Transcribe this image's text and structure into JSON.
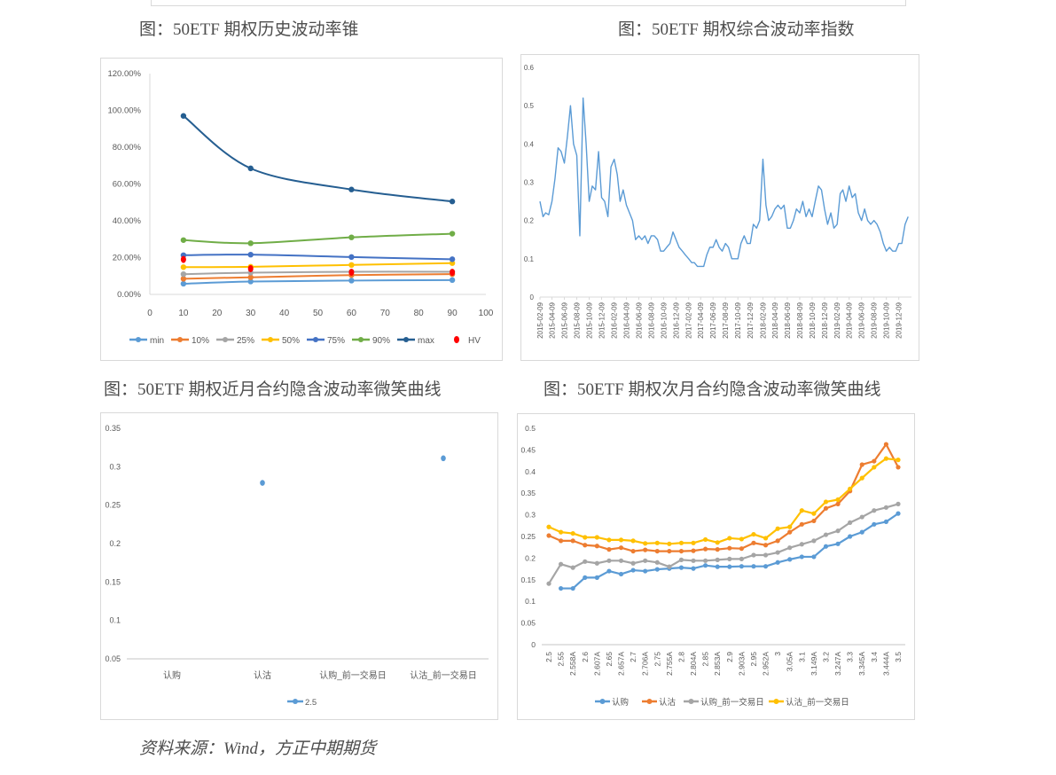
{
  "titles": {
    "fig1": "图：50ETF 期权历史波动率锥",
    "fig2": "图：50ETF 期权综合波动率指数",
    "fig3": "图：50ETF 期权近月合约隐含波动率微笑曲线",
    "fig4": "图：50ETF 期权次月合约隐含波动率微笑曲线"
  },
  "source": "资料来源：Wind，方正中期期货",
  "chart_data": [
    {
      "type": "line",
      "x": [
        10,
        30,
        60,
        90
      ],
      "xlim": [
        0,
        100
      ],
      "x_ticks": [
        "0",
        "10",
        "20",
        "30",
        "40",
        "50",
        "60",
        "70",
        "80",
        "90",
        "100"
      ],
      "ylim": [
        0,
        120
      ],
      "y_ticks": [
        "0.00%",
        "20.00%",
        "40.00%",
        "60.00%",
        "80.00%",
        "100.00%",
        "120.00%"
      ],
      "legend": "bottom",
      "smooth": true,
      "series": [
        {
          "name": "min",
          "color": "#5b9bd5",
          "values": [
            5.8,
            7.0,
            7.5,
            7.8
          ]
        },
        {
          "name": "10%",
          "color": "#ed7d31",
          "values": [
            8.5,
            9.3,
            10.5,
            11.0
          ]
        },
        {
          "name": "25%",
          "color": "#a5a5a5",
          "values": [
            11.0,
            11.8,
            12.3,
            12.3
          ]
        },
        {
          "name": "50%",
          "color": "#ffc000",
          "values": [
            14.8,
            15.0,
            16.0,
            17.0
          ]
        },
        {
          "name": "75%",
          "color": "#4472c4",
          "values": [
            21.3,
            21.6,
            20.3,
            19.1
          ]
        },
        {
          "name": "90%",
          "color": "#70ad47",
          "values": [
            29.5,
            27.8,
            31.0,
            33.0
          ]
        },
        {
          "name": "max",
          "color": "#255e91",
          "values": [
            97.0,
            68.5,
            57.0,
            50.5
          ]
        },
        {
          "name": "HV",
          "color": "#ff0000",
          "markers_only": true,
          "values": [
            19.0,
            14.0,
            12.0,
            12.0
          ]
        }
      ]
    },
    {
      "type": "line",
      "ylim": [
        0,
        0.6
      ],
      "y_ticks": [
        "0",
        "0.1",
        "0.2",
        "0.3",
        "0.4",
        "0.5",
        "0.6"
      ],
      "x_ticks": [
        "2015-02-09",
        "2015-04-09",
        "2015-06-09",
        "2015-08-09",
        "2015-10-09",
        "2015-12-09",
        "2016-02-09",
        "2016-04-09",
        "2016-06-09",
        "2016-08-09",
        "2016-10-09",
        "2016-12-09",
        "2017-02-09",
        "2017-04-09",
        "2017-06-09",
        "2017-08-09",
        "2017-10-09",
        "2017-12-09",
        "2018-02-09",
        "2018-04-09",
        "2018-06-09",
        "2018-08-09",
        "2018-10-09",
        "2018-12-09",
        "2019-02-09",
        "2019-04-09",
        "2019-06-09",
        "2019-08-09",
        "2019-10-09",
        "2019-12-09"
      ],
      "color": "#5b9bd5",
      "dates": [
        "2015-02-09",
        "2015-02-24",
        "2015-03-09",
        "2015-03-24",
        "2015-04-09",
        "2015-04-24",
        "2015-05-09",
        "2015-05-24",
        "2015-06-09",
        "2015-06-24",
        "2015-07-09",
        "2015-07-24",
        "2015-08-09",
        "2015-08-24",
        "2015-09-09",
        "2015-09-24",
        "2015-10-09",
        "2015-10-24",
        "2015-11-09",
        "2015-11-24",
        "2015-12-09",
        "2015-12-24",
        "2016-01-09",
        "2016-01-24",
        "2016-02-09",
        "2016-02-24",
        "2016-03-09",
        "2016-03-24",
        "2016-04-09",
        "2016-04-24",
        "2016-05-09",
        "2016-05-24",
        "2016-06-09",
        "2016-06-24",
        "2016-07-09",
        "2016-07-24",
        "2016-08-09",
        "2016-08-24",
        "2016-09-09",
        "2016-09-24",
        "2016-10-09",
        "2016-10-24",
        "2016-11-09",
        "2016-11-24",
        "2016-12-09",
        "2016-12-24",
        "2017-01-09",
        "2017-01-24",
        "2017-02-09",
        "2017-02-24",
        "2017-03-09",
        "2017-03-24",
        "2017-04-09",
        "2017-04-24",
        "2017-05-09",
        "2017-05-24",
        "2017-06-09",
        "2017-06-24",
        "2017-07-09",
        "2017-07-24",
        "2017-08-09",
        "2017-08-24",
        "2017-09-09",
        "2017-09-24",
        "2017-10-09",
        "2017-10-24",
        "2017-11-09",
        "2017-11-24",
        "2017-12-09",
        "2017-12-24",
        "2018-01-09",
        "2018-01-24",
        "2018-02-09",
        "2018-02-24",
        "2018-03-09",
        "2018-03-24",
        "2018-04-09",
        "2018-04-24",
        "2018-05-09",
        "2018-05-24",
        "2018-06-09",
        "2018-06-24",
        "2018-07-09",
        "2018-07-24",
        "2018-08-09",
        "2018-08-24",
        "2018-09-09",
        "2018-09-24",
        "2018-10-09",
        "2018-10-24",
        "2018-11-09",
        "2018-11-24",
        "2018-12-09",
        "2018-12-24",
        "2019-01-09",
        "2019-01-24",
        "2019-02-09",
        "2019-02-24",
        "2019-03-09",
        "2019-03-24",
        "2019-04-09",
        "2019-04-24",
        "2019-05-09",
        "2019-05-24",
        "2019-06-09",
        "2019-06-24",
        "2019-07-09",
        "2019-07-24",
        "2019-08-09",
        "2019-08-24",
        "2019-09-09",
        "2019-09-24",
        "2019-10-09",
        "2019-10-24",
        "2019-11-09",
        "2019-11-24",
        "2019-12-09",
        "2019-12-24",
        "2020-01-09",
        "2020-01-24"
      ],
      "values": [
        0.25,
        0.21,
        0.22,
        0.215,
        0.25,
        0.31,
        0.39,
        0.38,
        0.35,
        0.42,
        0.5,
        0.4,
        0.37,
        0.16,
        0.52,
        0.4,
        0.25,
        0.29,
        0.28,
        0.38,
        0.26,
        0.25,
        0.21,
        0.34,
        0.36,
        0.32,
        0.25,
        0.28,
        0.24,
        0.22,
        0.2,
        0.15,
        0.16,
        0.15,
        0.16,
        0.14,
        0.16,
        0.16,
        0.15,
        0.12,
        0.12,
        0.13,
        0.14,
        0.17,
        0.15,
        0.13,
        0.12,
        0.11,
        0.1,
        0.09,
        0.09,
        0.08,
        0.08,
        0.08,
        0.11,
        0.13,
        0.13,
        0.15,
        0.13,
        0.12,
        0.14,
        0.13,
        0.1,
        0.1,
        0.1,
        0.14,
        0.16,
        0.14,
        0.14,
        0.19,
        0.18,
        0.2,
        0.36,
        0.24,
        0.2,
        0.21,
        0.23,
        0.24,
        0.23,
        0.24,
        0.18,
        0.18,
        0.2,
        0.23,
        0.22,
        0.25,
        0.21,
        0.23,
        0.21,
        0.25,
        0.29,
        0.28,
        0.23,
        0.19,
        0.22,
        0.18,
        0.19,
        0.27,
        0.28,
        0.25,
        0.29,
        0.26,
        0.27,
        0.22,
        0.2,
        0.23,
        0.2,
        0.19,
        0.2,
        0.19,
        0.17,
        0.14,
        0.12,
        0.13,
        0.12,
        0.12,
        0.14,
        0.14,
        0.19,
        0.21
      ]
    },
    {
      "type": "line",
      "categories": [
        "认购",
        "认沽",
        "认购_前一交易日",
        "认沽_前一交易日"
      ],
      "ylim": [
        0.05,
        0.35
      ],
      "y_ticks": [
        "0.05",
        "0.1",
        "0.15",
        "0.2",
        "0.25",
        "0.3",
        "0.35"
      ],
      "legend": "bottom",
      "series": [
        {
          "name": "2.5",
          "color": "#5b9bd5",
          "values": [
            null,
            0.279,
            null,
            0.311
          ]
        }
      ]
    },
    {
      "type": "line",
      "categories": [
        "2.5",
        "2.55",
        "2.558A",
        "2.6",
        "2.607A",
        "2.65",
        "2.657A",
        "2.7",
        "2.706A",
        "2.75",
        "2.755A",
        "2.8",
        "2.804A",
        "2.85",
        "2.853A",
        "2.9",
        "2.903A",
        "2.95",
        "2.952A",
        "3",
        "3.05A",
        "3.1",
        "3.149A",
        "3.2",
        "3.247A",
        "3.3",
        "3.345A",
        "3.4",
        "3.444A",
        "3.5"
      ],
      "ylim": [
        0,
        0.5
      ],
      "y_ticks": [
        "0",
        "0.05",
        "0.1",
        "0.15",
        "0.2",
        "0.25",
        "0.3",
        "0.35",
        "0.4",
        "0.45",
        "0.5"
      ],
      "legend": "bottom",
      "series": [
        {
          "name": "认购",
          "color": "#5b9bd5",
          "values": [
            null,
            0.13,
            0.13,
            0.155,
            0.155,
            0.17,
            0.163,
            0.172,
            0.17,
            0.174,
            0.176,
            0.178,
            0.176,
            0.183,
            0.18,
            0.18,
            0.181,
            0.181,
            0.181,
            0.19,
            0.197,
            0.203,
            0.203,
            0.227,
            0.233,
            0.25,
            0.26,
            0.278,
            0.284,
            0.303
          ]
        },
        {
          "name": "认沽",
          "color": "#ed7d31",
          "values": [
            0.252,
            0.24,
            0.24,
            0.23,
            0.228,
            0.22,
            0.224,
            0.216,
            0.219,
            0.216,
            0.216,
            0.216,
            0.217,
            0.221,
            0.22,
            0.223,
            0.222,
            0.235,
            0.23,
            0.24,
            0.26,
            0.278,
            0.286,
            0.315,
            0.325,
            0.355,
            0.416,
            0.424,
            0.463,
            0.41
          ]
        },
        {
          "name": "认购_前一交易日",
          "color": "#a5a5a5",
          "values": [
            0.141,
            0.186,
            0.178,
            0.192,
            0.188,
            0.194,
            0.194,
            0.188,
            0.194,
            0.19,
            0.18,
            0.196,
            0.194,
            0.194,
            0.196,
            0.198,
            0.198,
            0.207,
            0.207,
            0.213,
            0.224,
            0.232,
            0.24,
            0.254,
            0.263,
            0.282,
            0.295,
            0.31,
            0.317,
            0.325
          ]
        },
        {
          "name": "认沽_前一交易日",
          "color": "#ffc000",
          "values": [
            0.272,
            0.26,
            0.257,
            0.248,
            0.248,
            0.242,
            0.242,
            0.24,
            0.234,
            0.235,
            0.233,
            0.235,
            0.235,
            0.243,
            0.236,
            0.246,
            0.244,
            0.255,
            0.246,
            0.268,
            0.272,
            0.31,
            0.303,
            0.33,
            0.335,
            0.36,
            0.385,
            0.41,
            0.43,
            0.427
          ]
        }
      ]
    }
  ]
}
